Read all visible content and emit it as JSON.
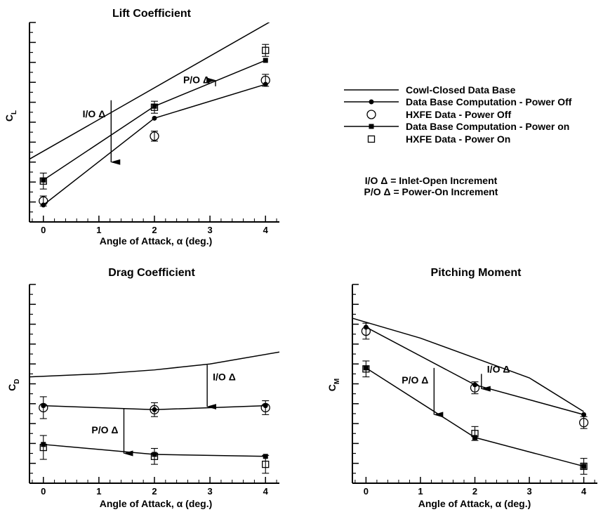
{
  "chart_data": [
    {
      "type": "line",
      "title": "Lift Coefficient",
      "xlabel": "Angle of Attack, α (deg.)",
      "ylabel": "C",
      "ylabel_sub": "L",
      "xlim": [
        -0.25,
        4.25
      ],
      "ylim": [
        0,
        10
      ],
      "x_ticks": [
        0,
        1,
        2,
        3,
        4
      ],
      "x_tick_labels": [
        "0",
        "1",
        "2",
        "3",
        "4"
      ],
      "y_ticks": [
        0,
        1,
        2,
        3,
        4,
        5,
        6,
        7,
        8,
        9,
        10
      ],
      "y_minor_ticks": [
        0.5,
        1.5,
        2.5,
        3.5,
        4.5,
        5.5,
        6.5,
        7.5,
        8.5,
        9.5
      ],
      "lines": [
        {
          "legend_index": 0,
          "x": [
            -0.25,
            4.25
          ],
          "y": [
            3.15,
            10.3
          ]
        },
        {
          "legend_index": 1,
          "x": [
            0,
            2,
            4
          ],
          "y": [
            0.85,
            5.2,
            6.9
          ]
        },
        {
          "legend_index": 3,
          "x": [
            0,
            2,
            4
          ],
          "y": [
            2.1,
            5.8,
            8.1
          ]
        }
      ],
      "points": [
        {
          "legend_index": 2,
          "x": [
            0,
            2,
            4
          ],
          "y": [
            1.05,
            4.3,
            7.1
          ],
          "err": [
            0.25,
            0.25,
            0.3
          ]
        },
        {
          "legend_index": 4,
          "x": [
            0,
            2,
            4
          ],
          "y": [
            2.05,
            5.75,
            8.6
          ],
          "err": [
            0.4,
            0.3,
            0.3
          ]
        }
      ],
      "increments": [
        {
          "label": "I/O Δ",
          "x": 1.22,
          "y_from": 6.1,
          "y_to": 3.0
        },
        {
          "label": "P/O Δ",
          "x": 3.1,
          "y_from": 6.8,
          "y_to": 7.1
        }
      ]
    },
    {
      "type": "line",
      "title": "Drag Coefficient",
      "xlabel": "Angle of Attack, α (deg.)",
      "ylabel": "C",
      "ylabel_sub": "D",
      "xlim": [
        -0.25,
        4.25
      ],
      "ylim": [
        0,
        10
      ],
      "x_ticks": [
        0,
        1,
        2,
        3,
        4
      ],
      "x_tick_labels": [
        "0",
        "1",
        "2",
        "3",
        "4"
      ],
      "y_ticks": [
        0,
        1,
        2,
        3,
        4,
        5,
        6,
        7,
        8,
        9,
        10
      ],
      "y_minor_ticks": [
        0.5,
        1.5,
        2.5,
        3.5,
        4.5,
        5.5,
        6.5,
        7.5,
        8.5,
        9.5
      ],
      "lines": [
        {
          "legend_index": 0,
          "x": [
            -0.25,
            1,
            2,
            3,
            4.25
          ],
          "y": [
            5.35,
            5.5,
            5.7,
            6.0,
            6.6
          ]
        },
        {
          "legend_index": 1,
          "x": [
            0,
            2,
            4
          ],
          "y": [
            3.9,
            3.7,
            3.9
          ]
        },
        {
          "legend_index": 3,
          "x": [
            0,
            2,
            4
          ],
          "y": [
            1.95,
            1.45,
            1.35
          ]
        }
      ],
      "points": [
        {
          "legend_index": 2,
          "x": [
            0,
            2,
            4
          ],
          "y": [
            3.8,
            3.7,
            3.8
          ],
          "err": [
            0.55,
            0.35,
            0.35
          ]
        },
        {
          "legend_index": 4,
          "x": [
            0,
            2,
            4
          ],
          "y": [
            1.8,
            1.35,
            0.95
          ],
          "err": [
            0.6,
            0.4,
            0.45
          ]
        }
      ],
      "increments": [
        {
          "label": "I/O Δ",
          "x": 2.95,
          "y_from": 5.95,
          "y_to": 3.85
        },
        {
          "label": "P/O Δ",
          "x": 1.45,
          "y_from": 3.75,
          "y_to": 1.5
        }
      ]
    },
    {
      "type": "line",
      "title": "Pitching Moment",
      "xlabel": "Angle of Attack, α (deg.)",
      "ylabel": "C",
      "ylabel_sub": "M",
      "xlim": [
        -0.25,
        4.25
      ],
      "ylim": [
        0,
        10
      ],
      "x_ticks": [
        0,
        1,
        2,
        3,
        4
      ],
      "x_tick_labels": [
        "0",
        "1",
        "2",
        "3",
        "4"
      ],
      "y_ticks": [
        0,
        1,
        2,
        3,
        4,
        5,
        6,
        7,
        8,
        9,
        10
      ],
      "y_minor_ticks": [
        0.5,
        1.5,
        2.5,
        3.5,
        4.5,
        5.5,
        6.5,
        7.5,
        8.5,
        9.5
      ],
      "lines": [
        {
          "legend_index": 0,
          "x": [
            -0.25,
            1,
            2,
            3,
            4
          ],
          "y": [
            8.3,
            7.3,
            6.3,
            5.3,
            3.6
          ]
        },
        {
          "legend_index": 1,
          "x": [
            0,
            2,
            4
          ],
          "y": [
            7.85,
            4.95,
            3.45
          ]
        },
        {
          "legend_index": 3,
          "x": [
            0,
            2,
            4
          ],
          "y": [
            5.8,
            2.3,
            0.85
          ]
        }
      ],
      "points": [
        {
          "legend_index": 2,
          "x": [
            0,
            2,
            4
          ],
          "y": [
            7.65,
            4.8,
            3.05
          ],
          "err": [
            0.4,
            0.3,
            0.3
          ]
        },
        {
          "legend_index": 4,
          "x": [
            0,
            2,
            4
          ],
          "y": [
            5.75,
            2.5,
            0.85
          ],
          "err": [
            0.4,
            0.35,
            0.4
          ]
        }
      ],
      "increments": [
        {
          "label": "I/O Δ",
          "x": 2.12,
          "y_from": 5.5,
          "y_to": 4.75
        },
        {
          "label": "P/O Δ",
          "x": 1.25,
          "y_from": 5.8,
          "y_to": 3.45
        }
      ]
    }
  ],
  "legend": {
    "entries": [
      {
        "label": "Cowl-Closed Data Base",
        "style": "line"
      },
      {
        "label": "Data Base Computation - Power Off",
        "style": "line-dot"
      },
      {
        "label": "HXFE Data - Power Off",
        "style": "circle"
      },
      {
        "label": "Data Base Computation - Power on",
        "style": "line-square"
      },
      {
        "label": "HXFE Data - Power On",
        "style": "square"
      }
    ],
    "notes": [
      "I/O Δ = Inlet-Open Increment",
      "P/O Δ = Power-On Increment"
    ]
  }
}
